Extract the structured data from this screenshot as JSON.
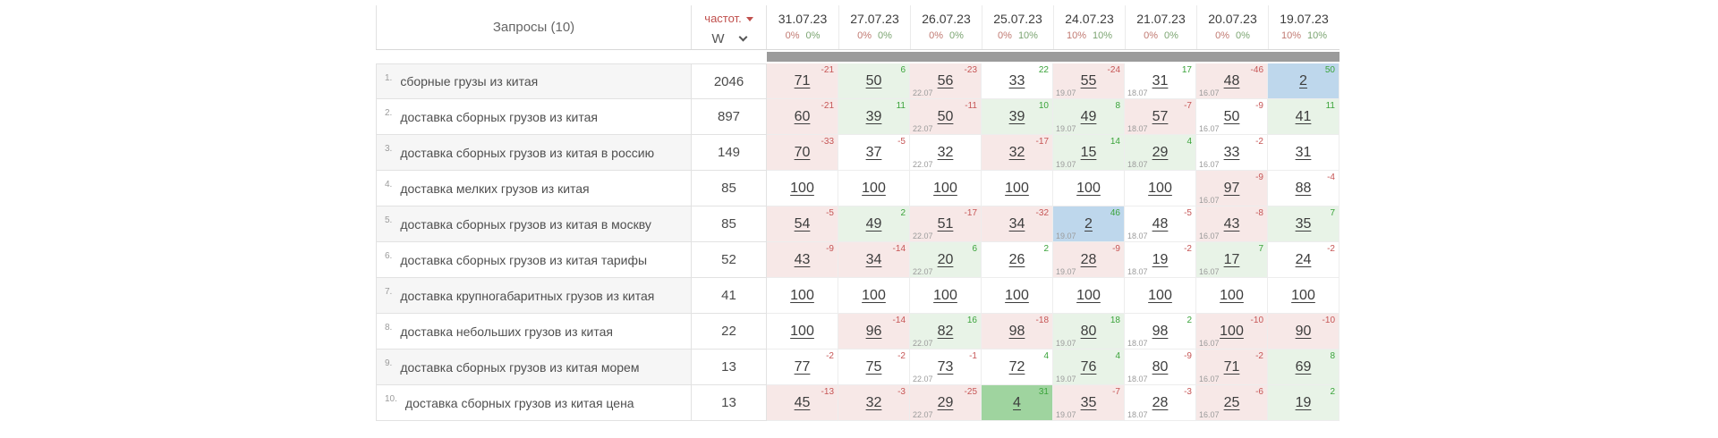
{
  "table": {
    "query_header": "Запросы (10)",
    "freq": {
      "label": "частот.",
      "mode": "W"
    },
    "dates": [
      {
        "date": "31.07.23",
        "pct_left": "0%",
        "pct_right": "0%"
      },
      {
        "date": "27.07.23",
        "pct_left": "0%",
        "pct_right": "0%"
      },
      {
        "date": "26.07.23",
        "pct_left": "0%",
        "pct_right": "0%"
      },
      {
        "date": "25.07.23",
        "pct_left": "0%",
        "pct_right": "10%"
      },
      {
        "date": "24.07.23",
        "pct_left": "10%",
        "pct_right": "10%"
      },
      {
        "date": "21.07.23",
        "pct_left": "0%",
        "pct_right": "0%"
      },
      {
        "date": "20.07.23",
        "pct_left": "0%",
        "pct_right": "0%"
      },
      {
        "date": "19.07.23",
        "pct_left": "10%",
        "pct_right": "10%"
      }
    ],
    "rows": [
      {
        "num": "1.",
        "query": "сборные грузы из китая",
        "freq": "2046",
        "cells": [
          {
            "pos": "71",
            "delta": "-21",
            "bg": "pink",
            "note": ""
          },
          {
            "pos": "50",
            "delta": "6",
            "bg": "green",
            "note": ""
          },
          {
            "pos": "56",
            "delta": "-23",
            "bg": "pink",
            "note": "22.07"
          },
          {
            "pos": "33",
            "delta": "22",
            "bg": "white",
            "note": ""
          },
          {
            "pos": "55",
            "delta": "-24",
            "bg": "pink",
            "note": "19.07"
          },
          {
            "pos": "31",
            "delta": "17",
            "bg": "white",
            "note": "18.07"
          },
          {
            "pos": "48",
            "delta": "-46",
            "bg": "pink",
            "note": "16.07"
          },
          {
            "pos": "2",
            "delta": "50",
            "bg": "blue",
            "note": ""
          }
        ]
      },
      {
        "num": "2.",
        "query": "доставка сборных грузов из китая",
        "freq": "897",
        "cells": [
          {
            "pos": "60",
            "delta": "-21",
            "bg": "pink",
            "note": ""
          },
          {
            "pos": "39",
            "delta": "11",
            "bg": "green",
            "note": ""
          },
          {
            "pos": "50",
            "delta": "-11",
            "bg": "pink",
            "note": "22.07"
          },
          {
            "pos": "39",
            "delta": "10",
            "bg": "green",
            "note": ""
          },
          {
            "pos": "49",
            "delta": "8",
            "bg": "green",
            "note": "19.07"
          },
          {
            "pos": "57",
            "delta": "-7",
            "bg": "pink",
            "note": "18.07"
          },
          {
            "pos": "50",
            "delta": "-9",
            "bg": "white",
            "note": "16.07"
          },
          {
            "pos": "41",
            "delta": "11",
            "bg": "green",
            "note": ""
          }
        ]
      },
      {
        "num": "3.",
        "query": "доставка сборных грузов из китая в россию",
        "freq": "149",
        "cells": [
          {
            "pos": "70",
            "delta": "-33",
            "bg": "pink",
            "note": ""
          },
          {
            "pos": "37",
            "delta": "-5",
            "bg": "white",
            "note": ""
          },
          {
            "pos": "32",
            "delta": "",
            "bg": "white",
            "note": "22.07"
          },
          {
            "pos": "32",
            "delta": "-17",
            "bg": "pink",
            "note": ""
          },
          {
            "pos": "15",
            "delta": "14",
            "bg": "green",
            "note": "19.07"
          },
          {
            "pos": "29",
            "delta": "4",
            "bg": "green",
            "note": "18.07"
          },
          {
            "pos": "33",
            "delta": "-2",
            "bg": "white",
            "note": "16.07"
          },
          {
            "pos": "31",
            "delta": "",
            "bg": "white",
            "note": ""
          }
        ]
      },
      {
        "num": "4.",
        "query": "доставка мелких грузов из китая",
        "freq": "85",
        "cells": [
          {
            "pos": "100",
            "delta": "",
            "bg": "white",
            "note": ""
          },
          {
            "pos": "100",
            "delta": "",
            "bg": "white",
            "note": ""
          },
          {
            "pos": "100",
            "delta": "",
            "bg": "white",
            "note": ""
          },
          {
            "pos": "100",
            "delta": "",
            "bg": "white",
            "note": ""
          },
          {
            "pos": "100",
            "delta": "",
            "bg": "white",
            "note": ""
          },
          {
            "pos": "100",
            "delta": "",
            "bg": "white",
            "note": ""
          },
          {
            "pos": "97",
            "delta": "-9",
            "bg": "pink",
            "note": "16.07"
          },
          {
            "pos": "88",
            "delta": "-4",
            "bg": "white",
            "note": ""
          }
        ]
      },
      {
        "num": "5.",
        "query": "доставка сборных грузов из китая в москву",
        "freq": "85",
        "cells": [
          {
            "pos": "54",
            "delta": "-5",
            "bg": "pink",
            "note": ""
          },
          {
            "pos": "49",
            "delta": "2",
            "bg": "green",
            "note": ""
          },
          {
            "pos": "51",
            "delta": "-17",
            "bg": "pink",
            "note": "22.07"
          },
          {
            "pos": "34",
            "delta": "-32",
            "bg": "pink",
            "note": ""
          },
          {
            "pos": "2",
            "delta": "46",
            "bg": "blue",
            "note": "19.07"
          },
          {
            "pos": "48",
            "delta": "-5",
            "bg": "white",
            "note": "18.07"
          },
          {
            "pos": "43",
            "delta": "-8",
            "bg": "pink",
            "note": "16.07"
          },
          {
            "pos": "35",
            "delta": "7",
            "bg": "green",
            "note": ""
          }
        ]
      },
      {
        "num": "6.",
        "query": "доставка сборных грузов из китая тарифы",
        "freq": "52",
        "cells": [
          {
            "pos": "43",
            "delta": "-9",
            "bg": "pink",
            "note": ""
          },
          {
            "pos": "34",
            "delta": "-14",
            "bg": "pink",
            "note": ""
          },
          {
            "pos": "20",
            "delta": "6",
            "bg": "green",
            "note": "22.07"
          },
          {
            "pos": "26",
            "delta": "2",
            "bg": "white",
            "note": ""
          },
          {
            "pos": "28",
            "delta": "-9",
            "bg": "pink",
            "note": "19.07"
          },
          {
            "pos": "19",
            "delta": "-2",
            "bg": "white",
            "note": "18.07"
          },
          {
            "pos": "17",
            "delta": "7",
            "bg": "green",
            "note": "16.07"
          },
          {
            "pos": "24",
            "delta": "-2",
            "bg": "white",
            "note": ""
          }
        ]
      },
      {
        "num": "7.",
        "query": "доставка крупногабаритных грузов из китая",
        "freq": "41",
        "cells": [
          {
            "pos": "100",
            "delta": "",
            "bg": "white",
            "note": ""
          },
          {
            "pos": "100",
            "delta": "",
            "bg": "white",
            "note": ""
          },
          {
            "pos": "100",
            "delta": "",
            "bg": "white",
            "note": ""
          },
          {
            "pos": "100",
            "delta": "",
            "bg": "white",
            "note": ""
          },
          {
            "pos": "100",
            "delta": "",
            "bg": "white",
            "note": ""
          },
          {
            "pos": "100",
            "delta": "",
            "bg": "white",
            "note": ""
          },
          {
            "pos": "100",
            "delta": "",
            "bg": "white",
            "note": ""
          },
          {
            "pos": "100",
            "delta": "",
            "bg": "white",
            "note": ""
          }
        ]
      },
      {
        "num": "8.",
        "query": "доставка небольших грузов из китая",
        "freq": "22",
        "cells": [
          {
            "pos": "100",
            "delta": "",
            "bg": "white",
            "note": ""
          },
          {
            "pos": "96",
            "delta": "-14",
            "bg": "pink",
            "note": ""
          },
          {
            "pos": "82",
            "delta": "16",
            "bg": "green",
            "note": "22.07"
          },
          {
            "pos": "98",
            "delta": "-18",
            "bg": "pink",
            "note": ""
          },
          {
            "pos": "80",
            "delta": "18",
            "bg": "green",
            "note": "19.07"
          },
          {
            "pos": "98",
            "delta": "2",
            "bg": "white",
            "note": "18.07"
          },
          {
            "pos": "100",
            "delta": "-10",
            "bg": "pink",
            "note": "16.07"
          },
          {
            "pos": "90",
            "delta": "-10",
            "bg": "pink",
            "note": ""
          }
        ]
      },
      {
        "num": "9.",
        "query": "доставка сборных грузов из китая морем",
        "freq": "13",
        "cells": [
          {
            "pos": "77",
            "delta": "-2",
            "bg": "white",
            "note": ""
          },
          {
            "pos": "75",
            "delta": "-2",
            "bg": "white",
            "note": ""
          },
          {
            "pos": "73",
            "delta": "-1",
            "bg": "white",
            "note": "22.07"
          },
          {
            "pos": "72",
            "delta": "4",
            "bg": "white",
            "note": ""
          },
          {
            "pos": "76",
            "delta": "4",
            "bg": "green",
            "note": "19.07"
          },
          {
            "pos": "80",
            "delta": "-9",
            "bg": "white",
            "note": "18.07"
          },
          {
            "pos": "71",
            "delta": "-2",
            "bg": "pink",
            "note": "16.07"
          },
          {
            "pos": "69",
            "delta": "8",
            "bg": "green",
            "note": ""
          }
        ]
      },
      {
        "num": "10.",
        "query": "доставка сборных грузов из китая цена",
        "freq": "13",
        "cells": [
          {
            "pos": "45",
            "delta": "-13",
            "bg": "pink",
            "note": ""
          },
          {
            "pos": "32",
            "delta": "-3",
            "bg": "pink",
            "note": ""
          },
          {
            "pos": "29",
            "delta": "-25",
            "bg": "pink",
            "note": "22.07"
          },
          {
            "pos": "4",
            "delta": "31",
            "bg": "green-strong",
            "note": ""
          },
          {
            "pos": "35",
            "delta": "-7",
            "bg": "pink",
            "note": "19.07"
          },
          {
            "pos": "28",
            "delta": "-3",
            "bg": "white",
            "note": "18.07"
          },
          {
            "pos": "25",
            "delta": "-6",
            "bg": "pink",
            "note": "16.07"
          },
          {
            "pos": "19",
            "delta": "2",
            "bg": "green",
            "note": ""
          }
        ]
      }
    ]
  },
  "colors": {
    "cell_pink": "#f7e8e7",
    "cell_green": "#e8f3e7",
    "cell_green_strong": "#9fd49f",
    "cell_blue": "#bed7ec",
    "delta_positive": "#3aa33a",
    "delta_negative": "#c65555",
    "accent_red": "#c0504d",
    "scrollbar_gray": "#9b9b9b"
  }
}
